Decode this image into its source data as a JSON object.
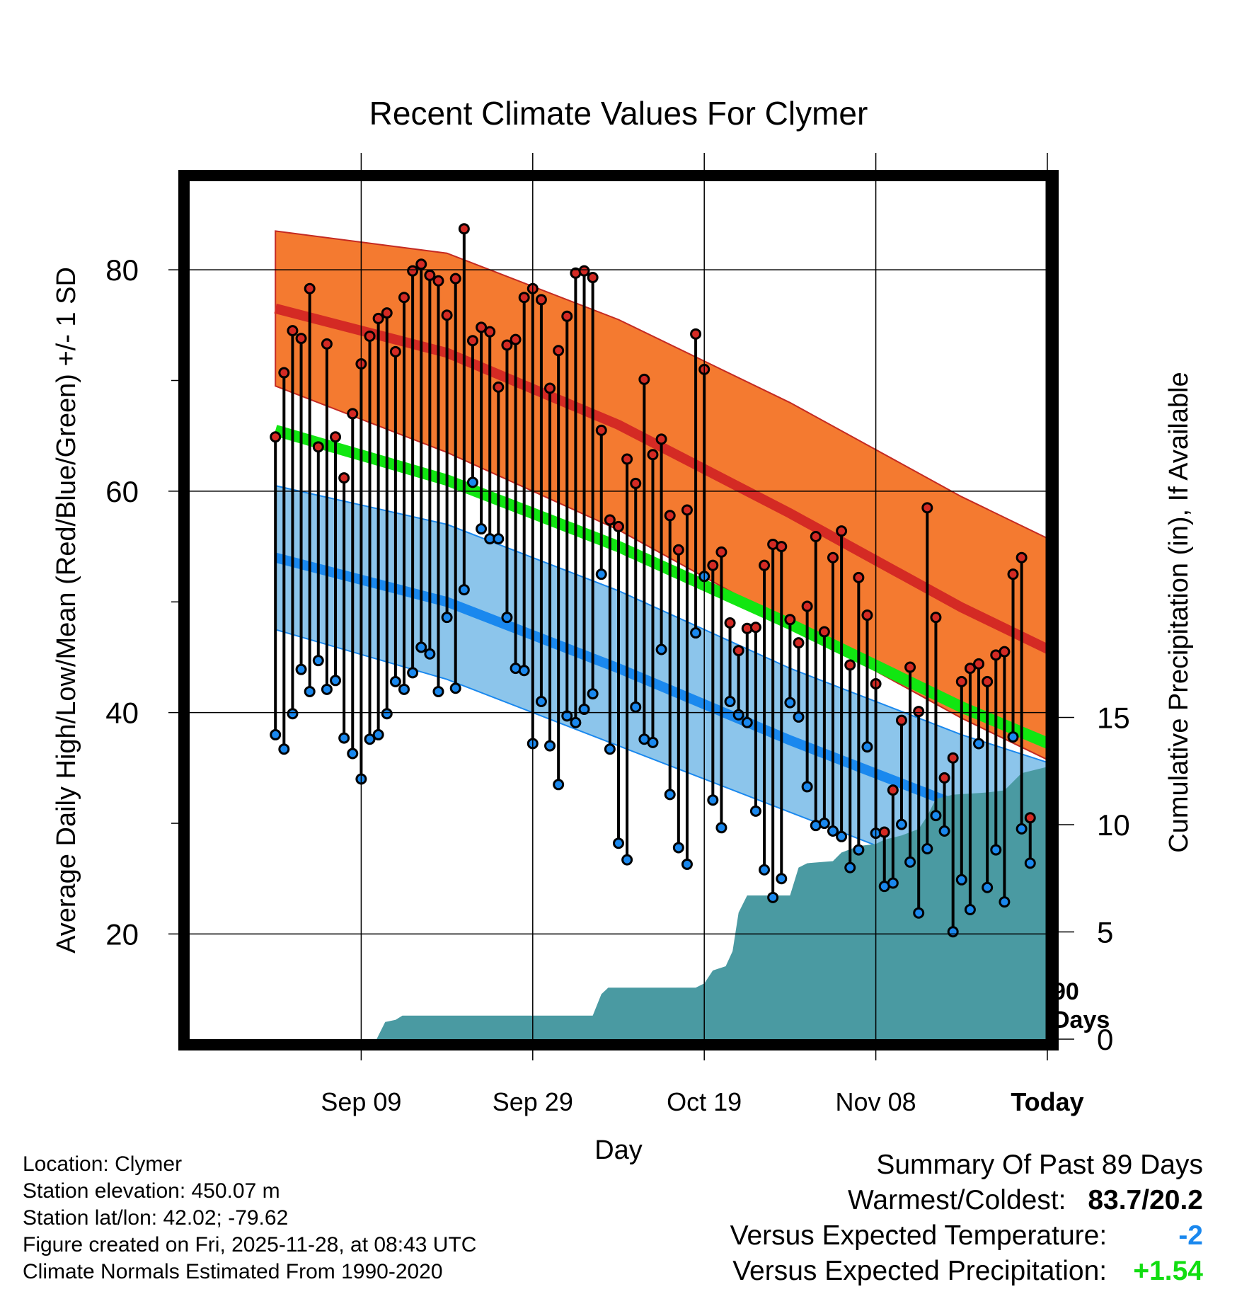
{
  "chart_data": {
    "type": "line",
    "title": "Recent Climate Values For Clymer",
    "xlabel": "Day",
    "ylabel": "Average Daily High/Low/Mean (Red/Blue/Green) +/- 1 SD",
    "y2label": "Cumulative Precipitation (in), If Available",
    "xlim": [
      -10,
      90
    ],
    "ylim": [
      10.5,
      88
    ],
    "y2lim": [
      0,
      40
    ],
    "x_ticks": [
      {
        "day": 10,
        "label": "Sep 09"
      },
      {
        "day": 30,
        "label": "Sep 29"
      },
      {
        "day": 50,
        "label": "Oct 19"
      },
      {
        "day": 70,
        "label": "Nov 08"
      },
      {
        "day": 90,
        "label": "Today"
      }
    ],
    "y_ticks": [
      20,
      40,
      60,
      80
    ],
    "y_minor_ticks": [
      30,
      50,
      70
    ],
    "y2_ticks": [
      0,
      5,
      10,
      15
    ],
    "today_marker": {
      "day": 90,
      "label_line1": "90",
      "label_line2": "Days"
    },
    "colors": {
      "high_band": "#f47a30",
      "high_mean": "#d42a24",
      "low_band": "#86c2ea",
      "low_mean": "#1a88ee",
      "mean_line": "#11e611",
      "precip_area": "#4a9aa2",
      "overlap": "#9b1414",
      "high_point": "#d42a24",
      "low_point": "#1a88ee"
    },
    "normals": {
      "days": [
        0,
        20,
        40,
        60,
        80,
        100
      ],
      "high_mean": [
        76.5,
        72.5,
        66.0,
        58.0,
        49.5,
        42.0
      ],
      "high_upper": [
        83.5,
        81.5,
        75.5,
        68.0,
        59.5,
        52.0
      ],
      "high_lower": [
        69.5,
        63.5,
        56.5,
        48.0,
        39.5,
        32.0
      ],
      "low_mean": [
        54.0,
        50.0,
        44.0,
        37.5,
        31.5,
        26.0
      ],
      "low_upper": [
        60.5,
        57.0,
        51.0,
        44.0,
        38.0,
        33.0
      ],
      "low_lower": [
        47.5,
        43.0,
        37.0,
        31.0,
        25.0,
        19.0
      ],
      "mean": [
        65.5,
        61.0,
        55.0,
        48.0,
        40.5,
        34.0
      ]
    },
    "series": [
      {
        "name": "Daily High",
        "start_day": 0,
        "values": [
          64.9,
          70.7,
          74.5,
          73.8,
          78.3,
          64.0,
          73.3,
          64.9,
          61.2,
          67.0,
          71.5,
          74.0,
          75.6,
          76.1,
          72.6,
          77.5,
          79.9,
          80.5,
          79.5,
          79.0,
          75.9,
          79.2,
          83.7,
          73.6,
          74.8,
          74.4,
          69.4,
          73.2,
          73.7,
          77.5,
          78.3,
          77.3,
          69.3,
          72.7,
          75.8,
          79.7,
          79.9,
          79.3,
          65.5,
          57.4,
          56.8,
          62.9,
          60.7,
          70.1,
          63.3,
          64.7,
          57.8,
          54.7,
          58.3,
          74.2,
          71.0,
          53.3,
          54.5,
          48.1,
          45.6,
          47.6,
          47.7,
          53.3,
          55.2,
          55.0,
          48.4,
          46.3,
          49.6,
          55.9,
          47.3,
          54.0,
          56.4,
          44.3,
          52.2,
          48.8,
          42.6,
          29.2,
          33.0,
          39.3,
          44.1,
          40.1,
          58.5,
          48.6,
          34.1,
          35.9,
          42.8,
          44.0,
          44.4,
          42.8,
          45.2,
          45.5,
          52.5,
          54.0,
          30.5
        ]
      },
      {
        "name": "Daily Low",
        "start_day": 0,
        "values": [
          38.0,
          36.7,
          39.9,
          43.9,
          41.9,
          44.7,
          42.1,
          42.9,
          37.7,
          36.3,
          34.0,
          37.6,
          38.0,
          39.9,
          42.8,
          42.1,
          43.6,
          45.9,
          45.3,
          41.9,
          48.6,
          42.2,
          51.1,
          60.8,
          56.6,
          55.7,
          55.7,
          48.6,
          44.0,
          43.8,
          37.2,
          41.0,
          37.0,
          33.5,
          39.7,
          39.1,
          40.3,
          41.7,
          52.5,
          36.7,
          28.2,
          26.7,
          40.5,
          37.6,
          37.3,
          45.7,
          32.6,
          27.8,
          26.3,
          47.2,
          52.3,
          32.1,
          29.6,
          41.0,
          39.8,
          39.1,
          31.1,
          25.8,
          23.3,
          25.0,
          40.9,
          39.6,
          33.3,
          29.8,
          30.0,
          29.3,
          28.8,
          26.0,
          27.6,
          36.9,
          29.1,
          24.3,
          24.6,
          29.9,
          26.5,
          21.9,
          27.7,
          30.7,
          29.3,
          20.2,
          24.9,
          22.2,
          37.2,
          24.2,
          27.6,
          22.9,
          37.8,
          29.5,
          26.4
        ]
      },
      {
        "name": "Cumulative Precipitation",
        "points": [
          [
            -10,
            0
          ],
          [
            11.8,
            0
          ],
          [
            12.8,
            0.8
          ],
          [
            14,
            0.9
          ],
          [
            14.8,
            1.1
          ],
          [
            26,
            1.1
          ],
          [
            27,
            1.1
          ],
          [
            28,
            1.1
          ],
          [
            37,
            1.1
          ],
          [
            38,
            2.1
          ],
          [
            38.8,
            2.4
          ],
          [
            49,
            2.4
          ],
          [
            50,
            2.6
          ],
          [
            51,
            3.2
          ],
          [
            52.5,
            3.4
          ],
          [
            53.3,
            4.1
          ],
          [
            54,
            5.9
          ],
          [
            55,
            6.7
          ],
          [
            60,
            6.7
          ],
          [
            61,
            8.0
          ],
          [
            62,
            8.2
          ],
          [
            65,
            8.3
          ],
          [
            66,
            8.7
          ],
          [
            68,
            9.0
          ],
          [
            70,
            9.1
          ],
          [
            71,
            9.3
          ],
          [
            73,
            9.5
          ],
          [
            75,
            9.8
          ],
          [
            76,
            10.4
          ],
          [
            77,
            11.2
          ],
          [
            79,
            11.4
          ],
          [
            83,
            11.5
          ],
          [
            85,
            11.6
          ],
          [
            86,
            12.0
          ],
          [
            87,
            12.4
          ],
          [
            90,
            12.7
          ],
          [
            100,
            12.7
          ]
        ]
      }
    ]
  },
  "meta": {
    "location": "Location: Clymer",
    "elevation": "Station elevation: 450.07 m",
    "latlon": "Station lat/lon: 42.02; -79.62",
    "created": "Figure created on Fri, 2025-11-28, at 08:43 UTC",
    "normals": "Climate Normals Estimated From 1990-2020"
  },
  "summary": {
    "title": "Summary Of Past 89 Days",
    "warm_cold_label": "Warmest/Coldest:",
    "warm_cold_value": "83.7/20.2",
    "temp_label": "Versus Expected Temperature:",
    "temp_value": "-2",
    "temp_color": "#1a88ee",
    "precip_label": "Versus Expected Precipitation:",
    "precip_value": "+1.54",
    "precip_color": "#11dd11"
  }
}
